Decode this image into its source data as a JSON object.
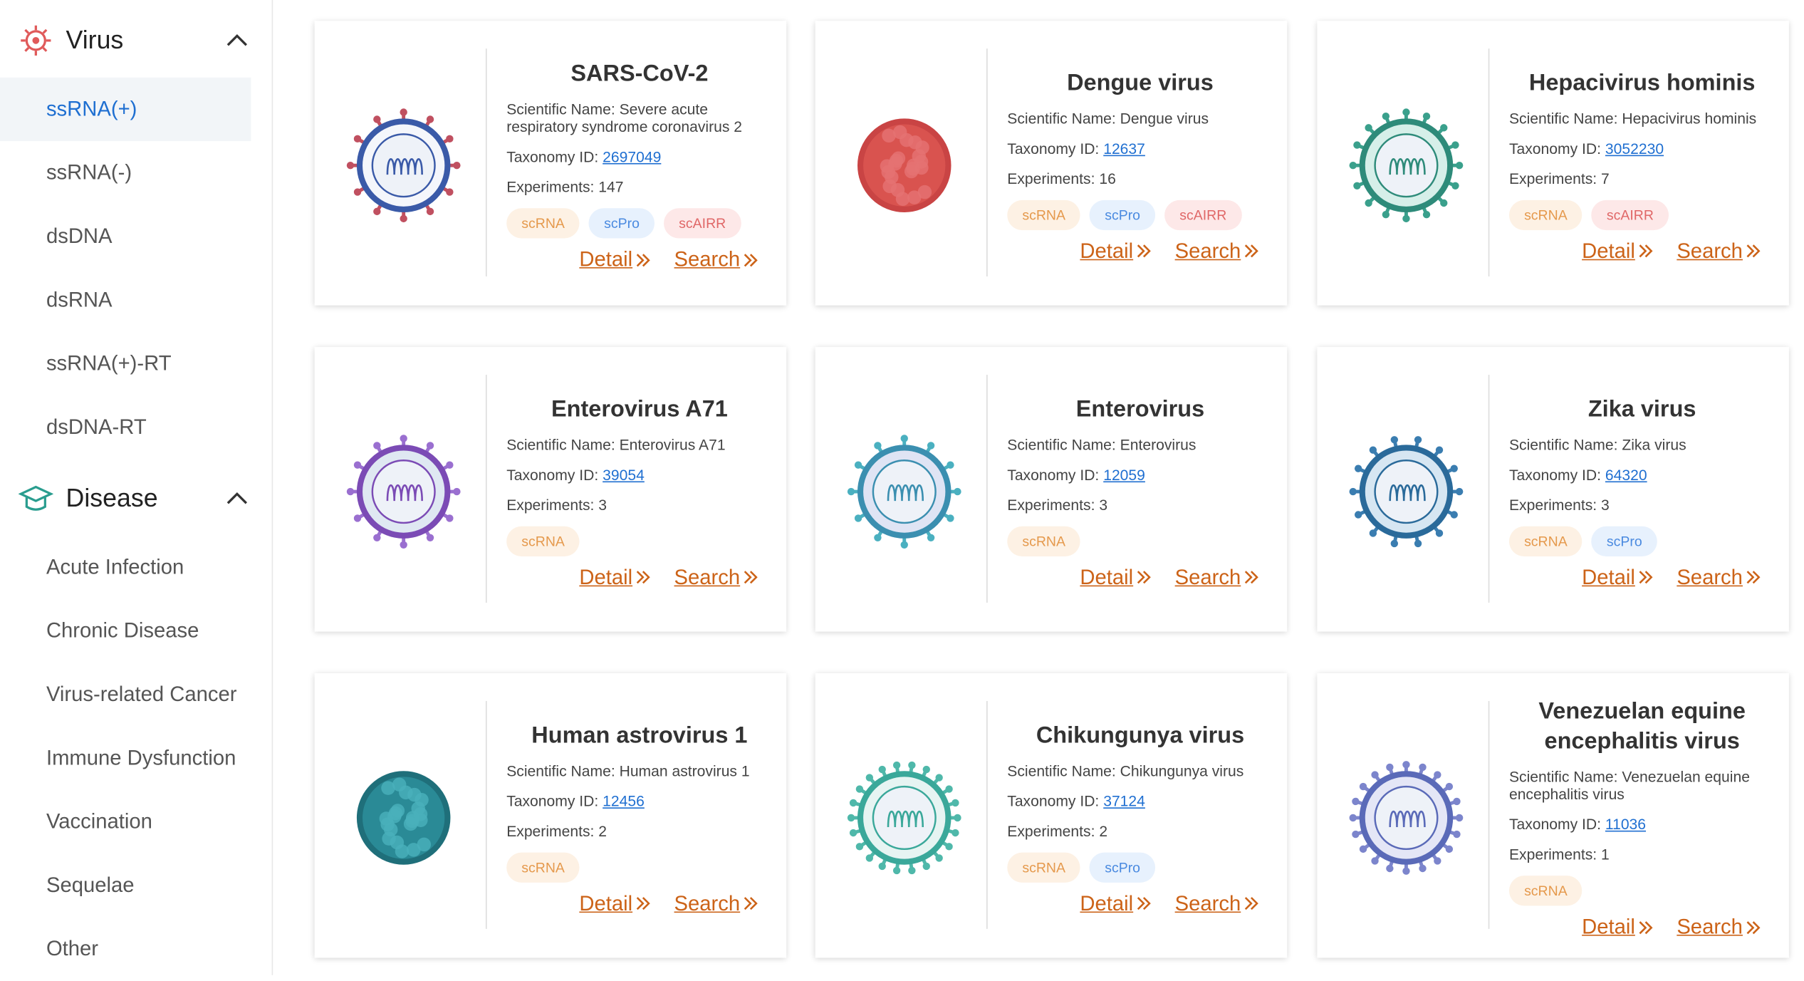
{
  "sidebar": {
    "sections": [
      {
        "title": "Virus",
        "items": [
          "ssRNA(+)",
          "ssRNA(-)",
          "dsDNA",
          "dsRNA",
          "ssRNA(+)-RT",
          "dsDNA-RT"
        ]
      },
      {
        "title": "Disease",
        "items": [
          "Acute Infection",
          "Chronic Disease",
          "Virus-related Cancer",
          "Immune Dysfunction",
          "Vaccination",
          "Sequelae",
          "Other"
        ]
      }
    ]
  },
  "labels": {
    "scientific_name": "Scientific Name:",
    "taxonomy_id": "Taxonomy ID:",
    "experiments": "Experiments:",
    "detail": "Detail",
    "search": "Search"
  },
  "cards": [
    {
      "name": "SARS-CoV-2",
      "scientific_name": "Severe acute respiratory syndrome coronavirus 2",
      "taxonomy_id": "2697049",
      "experiments": 147,
      "tags": [
        "scRNA",
        "scPro",
        "scAIRR"
      ]
    },
    {
      "name": "Dengue virus",
      "scientific_name": "Dengue virus",
      "taxonomy_id": "12637",
      "experiments": 16,
      "tags": [
        "scRNA",
        "scPro",
        "scAIRR"
      ]
    },
    {
      "name": "Hepacivirus hominis",
      "scientific_name": "Hepacivirus hominis",
      "taxonomy_id": "3052230",
      "experiments": 7,
      "tags": [
        "scRNA",
        "scAIRR"
      ]
    },
    {
      "name": "Enterovirus A71",
      "scientific_name": "Enterovirus A71",
      "taxonomy_id": "39054",
      "experiments": 3,
      "tags": [
        "scRNA"
      ]
    },
    {
      "name": "Enterovirus",
      "scientific_name": "Enterovirus",
      "taxonomy_id": "12059",
      "experiments": 3,
      "tags": [
        "scRNA"
      ]
    },
    {
      "name": "Zika virus",
      "scientific_name": "Zika virus",
      "taxonomy_id": "64320",
      "experiments": 3,
      "tags": [
        "scRNA",
        "scPro"
      ]
    },
    {
      "name": "Human astrovirus 1",
      "scientific_name": "Human astrovirus 1",
      "taxonomy_id": "12456",
      "experiments": 2,
      "tags": [
        "scRNA"
      ]
    },
    {
      "name": "Chikungunya virus",
      "scientific_name": "Chikungunya virus",
      "taxonomy_id": "37124",
      "experiments": 2,
      "tags": [
        "scRNA",
        "scPro"
      ]
    },
    {
      "name": "Venezuelan equine encephalitis virus",
      "scientific_name": "Venezuelan equine encephalitis virus",
      "taxonomy_id": "11036",
      "experiments": 1,
      "tags": [
        "scRNA"
      ]
    }
  ]
}
